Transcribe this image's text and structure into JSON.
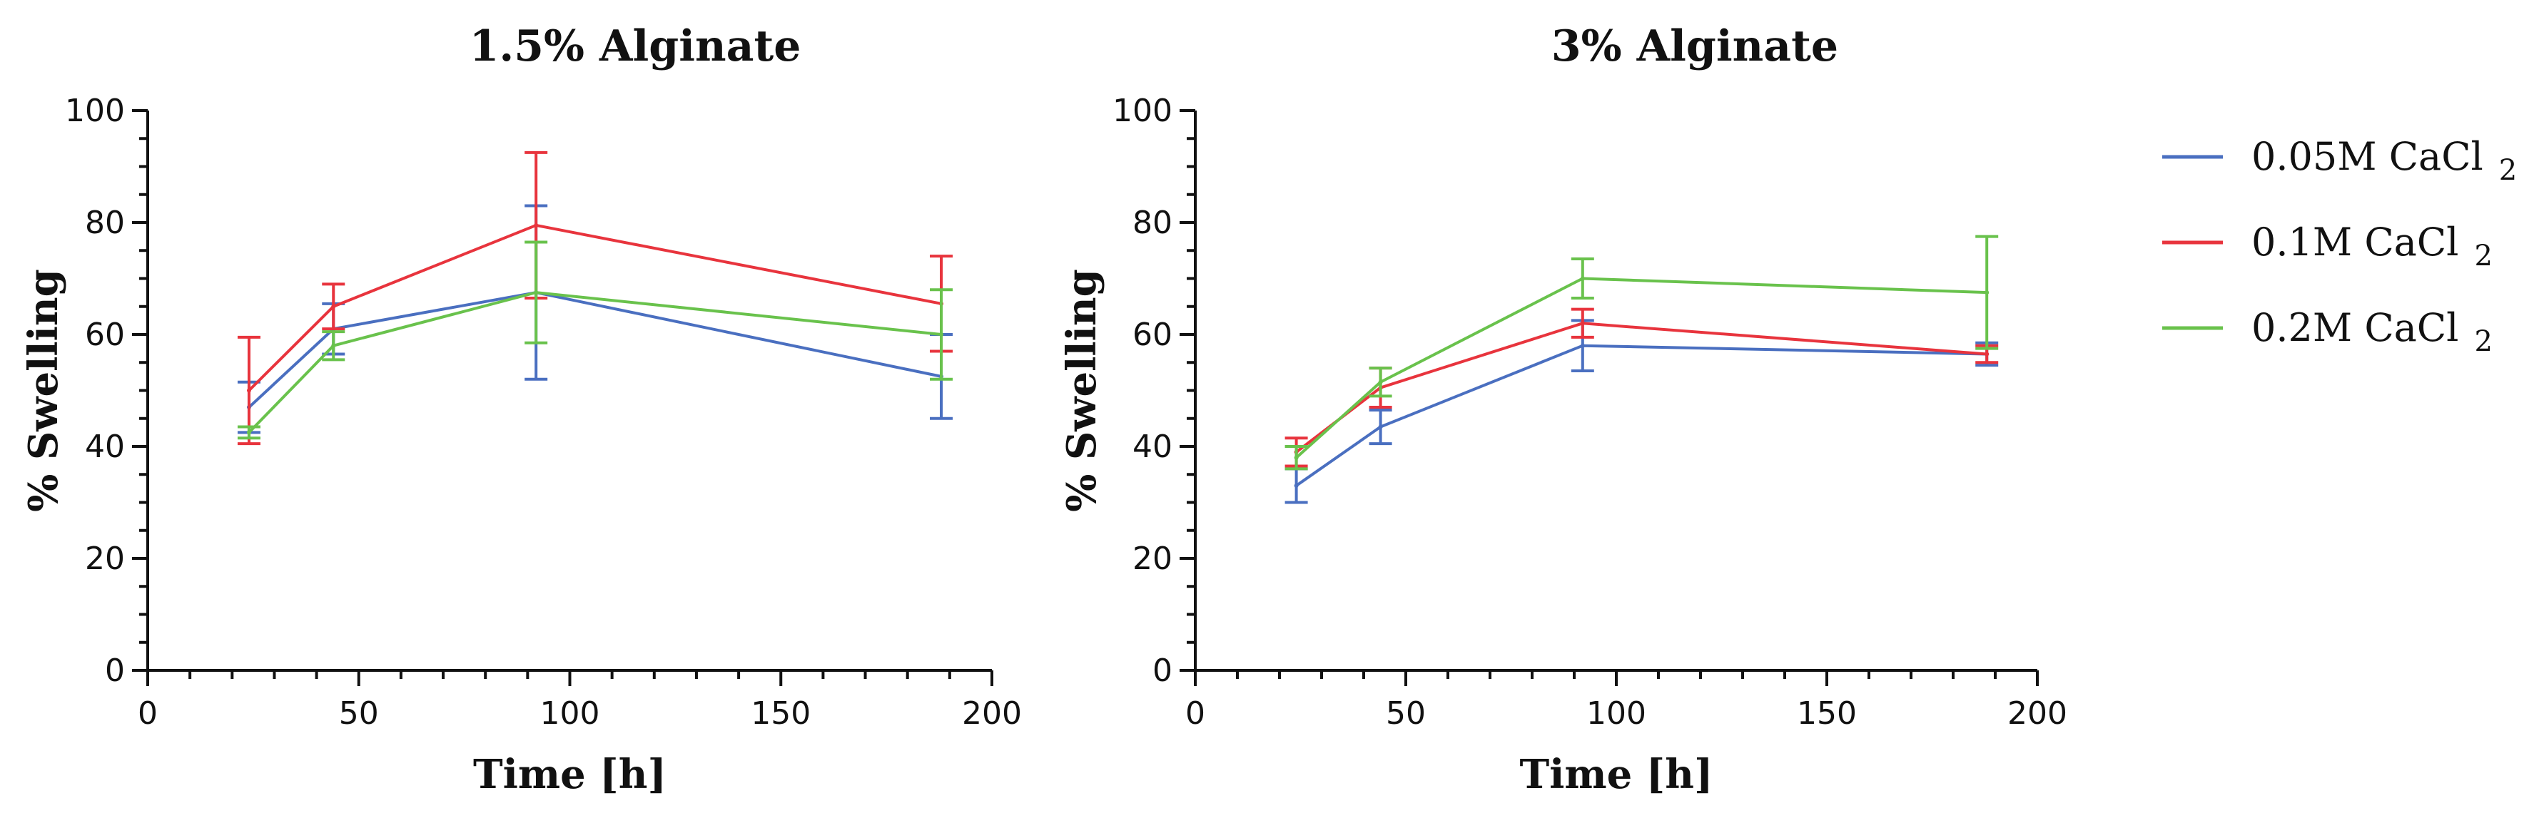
{
  "legend": [
    {
      "name": "0.05M CaCl",
      "subscript": "2",
      "color": "#4a6fc0"
    },
    {
      "name": "0.1M CaCl",
      "subscript": "2",
      "color": "#e8343d"
    },
    {
      "name": "0.2M CaCl",
      "subscript": "2",
      "color": "#69c24c"
    }
  ],
  "chart_data": [
    {
      "type": "line",
      "title": "1.5% Alginate",
      "xlabel": "Time [h]",
      "ylabel": "% Swelling",
      "xlim": [
        0,
        200
      ],
      "ylim": [
        0,
        100
      ],
      "xticks": [
        "0",
        "50",
        "100",
        "150",
        "200"
      ],
      "yticks": [
        "0",
        "20",
        "40",
        "60",
        "80",
        "100"
      ],
      "x": [
        24,
        44,
        92,
        188
      ],
      "series": [
        {
          "name": "0.05M CaCl 2",
          "color": "#4a6fc0",
          "values": [
            47,
            61,
            67.5,
            52.5
          ],
          "errors": [
            4.5,
            4.5,
            15.5,
            7.5
          ]
        },
        {
          "name": "0.1M CaCl 2",
          "color": "#e8343d",
          "values": [
            50,
            65,
            79.5,
            65.5
          ],
          "errors": [
            9.5,
            4,
            13,
            8.5
          ]
        },
        {
          "name": "0.2M CaCl 2",
          "color": "#69c24c",
          "values": [
            42.5,
            58,
            67.5,
            60
          ],
          "errors": [
            1,
            2.5,
            9,
            8
          ]
        }
      ]
    },
    {
      "type": "line",
      "title": "3% Alginate",
      "xlabel": "Time [h]",
      "ylabel": "% Swelling",
      "xlim": [
        0,
        200
      ],
      "ylim": [
        0,
        100
      ],
      "xticks": [
        "0",
        "50",
        "100",
        "150",
        "200"
      ],
      "yticks": [
        "0",
        "20",
        "40",
        "60",
        "80",
        "100"
      ],
      "x": [
        24,
        44,
        92,
        188
      ],
      "series": [
        {
          "name": "0.05M CaCl 2",
          "color": "#4a6fc0",
          "values": [
            33,
            43.5,
            58,
            56.5
          ],
          "errors": [
            3,
            3,
            4.5,
            2
          ]
        },
        {
          "name": "0.1M CaCl 2",
          "color": "#e8343d",
          "values": [
            39,
            50.5,
            62,
            56.5
          ],
          "errors": [
            2.5,
            3.5,
            2.5,
            1.5
          ]
        },
        {
          "name": "0.2M CaCl 2",
          "color": "#69c24c",
          "values": [
            38,
            51.5,
            70,
            67.5
          ],
          "errors": [
            2,
            2.5,
            3.5,
            10
          ]
        }
      ]
    }
  ]
}
